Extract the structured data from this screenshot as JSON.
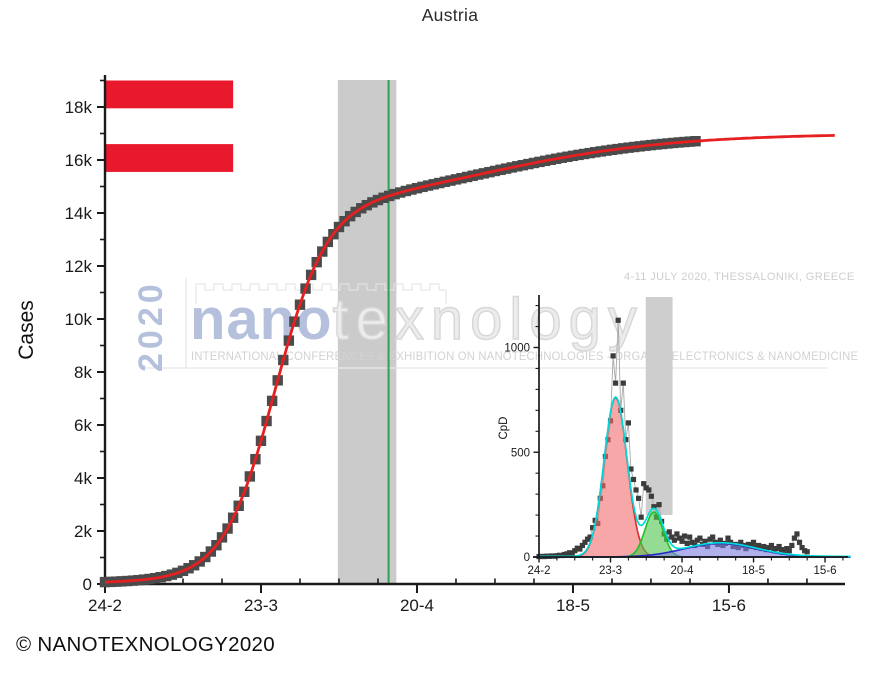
{
  "title": "Austria",
  "copyright": "© NANOTEXNOLOGY2020",
  "watermark": {
    "year": "2020",
    "brand_bold": "nano",
    "brand_light": "texnology",
    "tagline": "INTERNATIONAL CONFERENCES & EXHIBITION ON NANOTECHNOLOGIES - ORGANIC ELECTRONICS & NANOMEDICINE",
    "event": "4-11 JULY 2020, THESSALONIKI, GREECE"
  },
  "flag": {
    "color": "#e8192c",
    "bars": [
      {
        "top_value": 19000,
        "bottom_value": 17950,
        "from_day": 0,
        "to_day": 23
      },
      {
        "top_value": 16600,
        "bottom_value": 15550,
        "from_day": 0,
        "to_day": 23
      }
    ]
  },
  "chart_data": [
    {
      "type": "scatter",
      "name": "cumulative-cases-main",
      "title": "Austria",
      "ylabel": "Cases",
      "x_unit": "days since 24-2-2020",
      "x_major_tick_days": [
        0,
        28,
        56,
        84,
        112
      ],
      "x_tick_labels": [
        "24-2",
        "23-3",
        "20-4",
        "18-5",
        "15-6"
      ],
      "x_minor_step_days": 7,
      "y_major_ticks": [
        0,
        2000,
        4000,
        6000,
        8000,
        10000,
        12000,
        14000,
        16000,
        18000
      ],
      "y_tick_labels": [
        "0",
        "2k",
        "4k",
        "6k",
        "8k",
        "10k",
        "12k",
        "14k",
        "16k",
        "18k"
      ],
      "ylim": [
        0,
        19200
      ],
      "xlim": [
        0,
        133
      ],
      "grid": false,
      "legend": false,
      "marker_color": "#4b4b4b",
      "points_daily_cumulative_cases": [
        72,
        80,
        89,
        100,
        112,
        127,
        144,
        165,
        189,
        220,
        257,
        300,
        353,
        420,
        497,
        595,
        708,
        850,
        1017,
        1225,
        1464,
        1760,
        2093,
        2500,
        2951,
        3480,
        4059,
        4710,
        5403,
        6150,
        6910,
        7685,
        8452,
        9185,
        9901,
        10540,
        11148,
        11665,
        12144,
        12545,
        12910,
        13200,
        13472,
        13690,
        13881,
        14040,
        14179,
        14295,
        14402,
        14490,
        14574,
        14645,
        14712,
        14773,
        14831,
        14885,
        14936,
        14987,
        15036,
        15083,
        15130,
        15177,
        15223,
        15269,
        15314,
        15360,
        15406,
        15451,
        15496,
        15541,
        15586,
        15631,
        15675,
        15719,
        15762,
        15804,
        15846,
        15888,
        15929,
        15969,
        16008,
        16047,
        16085,
        16122,
        16158,
        16193,
        16227,
        16260,
        16293,
        16324,
        16354,
        16384,
        16412,
        16440,
        16466,
        16491,
        16515,
        16539,
        16562,
        16583,
        16604,
        16624,
        16643,
        16661,
        16678,
        16694,
        16710
      ],
      "fit_curve": {
        "color": "#e62020",
        "x_end_day": 131,
        "logistic_components": [
          {
            "L": 14000,
            "x0": 30.5,
            "tau": 4.6
          },
          {
            "L": 3000,
            "x0": 68,
            "tau": 17
          }
        ]
      },
      "highlight_band": {
        "from_day": 41.8,
        "to_day": 52.3,
        "color": "#cbcbcb"
      },
      "event_line": {
        "day": 50.9,
        "color": "#2ba352"
      }
    },
    {
      "type": "area+scatter",
      "name": "cases-per-day-inset",
      "ylabel": "CpD",
      "x_unit": "days since 24-2-2020",
      "x_major_tick_days": [
        0,
        28,
        56,
        84,
        112
      ],
      "x_tick_labels": [
        "24-2",
        "23-3",
        "20-4",
        "18-5",
        "15-6"
      ],
      "x_minor_step_days": 7,
      "y_major_ticks": [
        0,
        500,
        1000
      ],
      "y_tick_labels": [
        "0",
        "500",
        "1000"
      ],
      "y_minor_step": 100,
      "ylim": [
        0,
        1250
      ],
      "xlim": [
        0,
        122
      ],
      "grid": false,
      "legend": false,
      "marker_color": "#3c3c3c",
      "connector_color": "#a8a8a8",
      "points_daily_new_cases": [
        2,
        3,
        2,
        4,
        3,
        5,
        4,
        6,
        8,
        7,
        12,
        15,
        20,
        18,
        30,
        42,
        38,
        55,
        70,
        85,
        95,
        140,
        175,
        160,
        280,
        340,
        480,
        560,
        650,
        960,
        830,
        1130,
        700,
        830,
        560,
        640,
        420,
        370,
        320,
        280,
        190,
        350,
        330,
        320,
        290,
        240,
        190,
        250,
        170,
        110,
        85,
        120,
        95,
        80,
        110,
        90,
        75,
        100,
        65,
        95,
        70,
        55,
        80,
        90,
        60,
        75,
        50,
        85,
        95,
        70,
        60,
        80,
        55,
        65,
        90,
        70,
        50,
        60,
        45,
        70,
        55,
        40,
        60,
        50,
        70,
        45,
        55,
        40,
        50,
        35,
        45,
        55,
        30,
        40,
        50,
        35,
        25,
        40,
        30,
        55,
        90,
        110,
        70,
        45,
        30,
        25
      ],
      "gaussian_peaks": [
        {
          "name": "wave-1",
          "amplitude": 760,
          "center_day": 30,
          "sigma_days": 4.5,
          "fill": "#f26d6d",
          "fill_opacity": 0.6,
          "stroke": "#dd2c2c"
        },
        {
          "name": "wave-2",
          "amplitude": 215,
          "center_day": 45,
          "sigma_days": 3.5,
          "fill": "#52c552",
          "fill_opacity": 0.62,
          "stroke": "#1fc122"
        },
        {
          "name": "wave-3",
          "amplitude": 65,
          "center_day": 71,
          "sigma_days": 14,
          "fill": "#7b7be0",
          "fill_opacity": 0.6,
          "stroke": "#2727cc"
        }
      ],
      "envelope": {
        "color": "#00d9d9",
        "baseline": 3
      },
      "highlight_band": {
        "from_day": 41.8,
        "to_day": 52.3,
        "color": "#cbcbcb"
      }
    }
  ]
}
